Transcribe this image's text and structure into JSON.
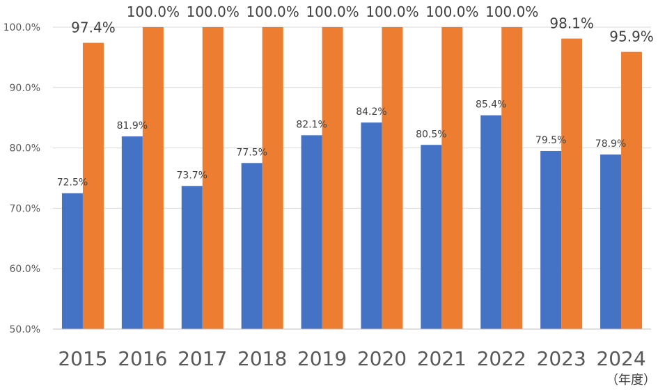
{
  "chart_data": {
    "type": "bar",
    "categories": [
      "2015",
      "2016",
      "2017",
      "2018",
      "2019",
      "2020",
      "2021",
      "2022",
      "2023",
      "2024"
    ],
    "series": [
      {
        "values": [
          72.5,
          81.9,
          73.7,
          77.5,
          82.1,
          84.2,
          80.5,
          85.4,
          79.5,
          78.9
        ],
        "labels": [
          "72.5%",
          "81.9%",
          "73.7%",
          "77.5%",
          "82.1%",
          "84.2%",
          "80.5%",
          "85.4%",
          "79.5%",
          "78.9%"
        ],
        "color": "#4472c4"
      },
      {
        "values": [
          97.4,
          100.0,
          100.0,
          100.0,
          100.0,
          100.0,
          100.0,
          100.0,
          98.1,
          95.9
        ],
        "labels": [
          "97.4%",
          "100.0%",
          "100.0%",
          "100.0%",
          "100.0%",
          "100.0%",
          "100.0%",
          "100.0%",
          "98.1%",
          "95.9%"
        ],
        "color": "#ed7d31"
      }
    ],
    "yticks": [
      "50.0%",
      "60.0%",
      "70.0%",
      "80.0%",
      "90.0%",
      "100.0%"
    ],
    "ytick_values": [
      50,
      60,
      70,
      80,
      90,
      100
    ],
    "ylim": [
      50,
      100
    ],
    "x_unit": "（年度）",
    "grid": true,
    "legend": "none"
  }
}
